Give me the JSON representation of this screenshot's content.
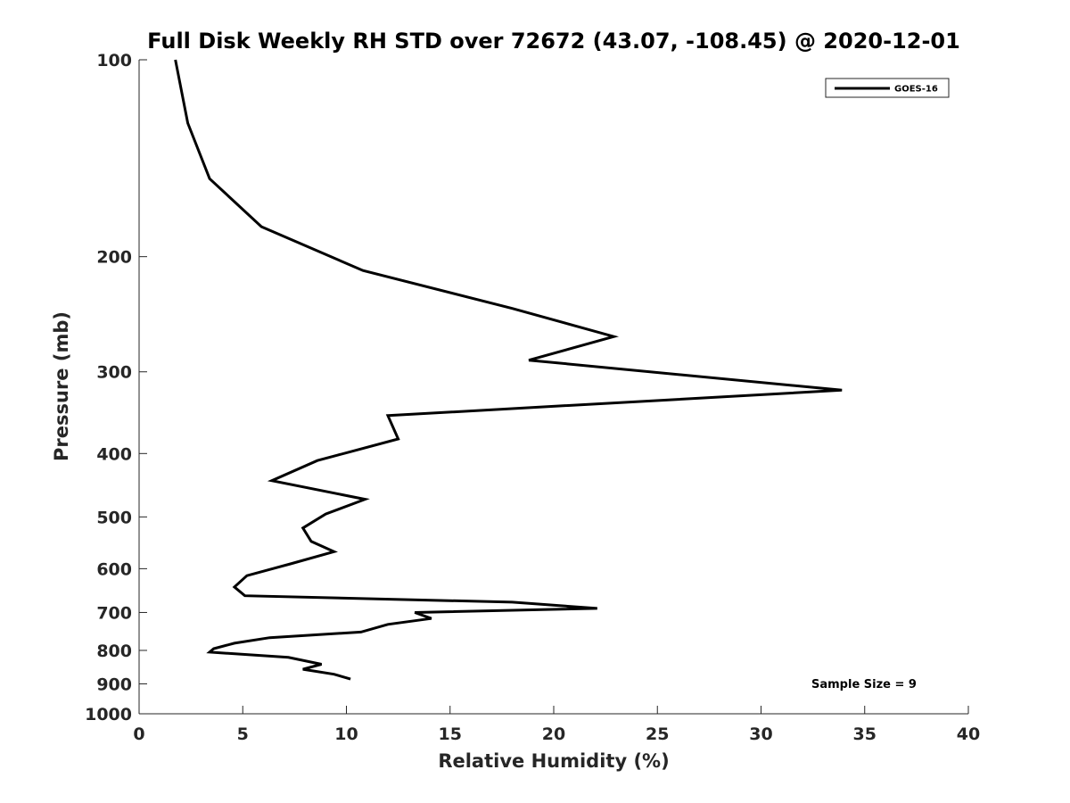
{
  "chart_data": {
    "type": "line",
    "title": "Full Disk Weekly RH STD over 72672 (43.07, -108.45) @ 2020-12-01",
    "xlabel": "Relative Humidity (%)",
    "ylabel": "Pressure (mb)",
    "xlim": [
      0,
      40
    ],
    "ylim": [
      100,
      1000
    ],
    "yscale": "log",
    "yreversed": true,
    "grid": false,
    "x_ticks": [
      0,
      5,
      10,
      15,
      20,
      25,
      30,
      35,
      40
    ],
    "y_ticks": [
      100,
      200,
      300,
      400,
      500,
      600,
      700,
      800,
      900,
      1000
    ],
    "legend": {
      "position": "top-right",
      "entries": [
        "GOES-16"
      ]
    },
    "annotation": "Sample Size = 9",
    "series": [
      {
        "name": "GOES-16",
        "color": "#000000",
        "points": [
          {
            "x": 1.75,
            "p": 100
          },
          {
            "x": 2.35,
            "p": 125
          },
          {
            "x": 3.4,
            "p": 152
          },
          {
            "x": 5.9,
            "p": 180
          },
          {
            "x": 10.8,
            "p": 210
          },
          {
            "x": 18.0,
            "p": 240
          },
          {
            "x": 22.9,
            "p": 265
          },
          {
            "x": 18.8,
            "p": 288
          },
          {
            "x": 33.9,
            "p": 320
          },
          {
            "x": 12.0,
            "p": 350
          },
          {
            "x": 12.5,
            "p": 380
          },
          {
            "x": 8.6,
            "p": 410
          },
          {
            "x": 6.4,
            "p": 440
          },
          {
            "x": 10.9,
            "p": 470
          },
          {
            "x": 9.0,
            "p": 495
          },
          {
            "x": 7.9,
            "p": 520
          },
          {
            "x": 8.3,
            "p": 545
          },
          {
            "x": 9.4,
            "p": 565
          },
          {
            "x": 7.3,
            "p": 590
          },
          {
            "x": 5.2,
            "p": 615
          },
          {
            "x": 4.6,
            "p": 640
          },
          {
            "x": 5.1,
            "p": 660
          },
          {
            "x": 18.0,
            "p": 675
          },
          {
            "x": 22.1,
            "p": 690
          },
          {
            "x": 13.3,
            "p": 700
          },
          {
            "x": 14.1,
            "p": 715
          },
          {
            "x": 12.0,
            "p": 730
          },
          {
            "x": 10.7,
            "p": 750
          },
          {
            "x": 6.3,
            "p": 765
          },
          {
            "x": 4.6,
            "p": 780
          },
          {
            "x": 3.6,
            "p": 795
          },
          {
            "x": 3.4,
            "p": 805
          },
          {
            "x": 7.2,
            "p": 820
          },
          {
            "x": 8.8,
            "p": 840
          },
          {
            "x": 7.9,
            "p": 855
          },
          {
            "x": 9.4,
            "p": 870
          },
          {
            "x": 10.2,
            "p": 885
          }
        ]
      }
    ]
  }
}
